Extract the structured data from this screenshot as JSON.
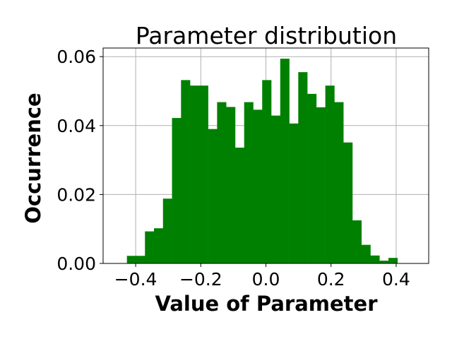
{
  "chart_data": {
    "type": "bar",
    "title": "Parameter distribution",
    "xlabel": "Value of Parameter",
    "ylabel": "Occurrence",
    "xlim": [
      -0.5,
      0.5
    ],
    "ylim": [
      0,
      0.0625
    ],
    "xticks": [
      -0.4,
      -0.2,
      0.0,
      0.2,
      0.4
    ],
    "xtick_labels": [
      "−0.4",
      "−0.2",
      "0.0",
      "0.2",
      "0.4"
    ],
    "yticks": [
      0.0,
      0.02,
      0.04,
      0.06
    ],
    "ytick_labels": [
      "0.00",
      "0.02",
      "0.04",
      "0.06"
    ],
    "grid": true,
    "bar_color": "#008000",
    "bins": [
      {
        "x0": -0.4269,
        "x1": -0.3992,
        "value": 0.0022
      },
      {
        "x0": -0.3992,
        "x1": -0.3715,
        "value": 0.0022
      },
      {
        "x0": -0.3715,
        "x1": -0.3438,
        "value": 0.0093
      },
      {
        "x0": -0.3438,
        "x1": -0.3161,
        "value": 0.0102
      },
      {
        "x0": -0.3161,
        "x1": -0.2884,
        "value": 0.0188
      },
      {
        "x0": -0.2884,
        "x1": -0.2607,
        "value": 0.0422
      },
      {
        "x0": -0.2607,
        "x1": -0.233,
        "value": 0.0532
      },
      {
        "x0": -0.233,
        "x1": -0.2053,
        "value": 0.0516
      },
      {
        "x0": -0.2053,
        "x1": -0.1776,
        "value": 0.0516
      },
      {
        "x0": -0.1776,
        "x1": -0.1499,
        "value": 0.039
      },
      {
        "x0": -0.1499,
        "x1": -0.1222,
        "value": 0.0468
      },
      {
        "x0": -0.1222,
        "x1": -0.0945,
        "value": 0.0454
      },
      {
        "x0": -0.0945,
        "x1": -0.0668,
        "value": 0.0336
      },
      {
        "x0": -0.0668,
        "x1": -0.0391,
        "value": 0.0468
      },
      {
        "x0": -0.0391,
        "x1": -0.0114,
        "value": 0.0446
      },
      {
        "x0": -0.0114,
        "x1": 0.0163,
        "value": 0.0532
      },
      {
        "x0": 0.0163,
        "x1": 0.044,
        "value": 0.0429
      },
      {
        "x0": 0.044,
        "x1": 0.0717,
        "value": 0.0594
      },
      {
        "x0": 0.0717,
        "x1": 0.0994,
        "value": 0.0406
      },
      {
        "x0": 0.0994,
        "x1": 0.1271,
        "value": 0.0555
      },
      {
        "x0": 0.1271,
        "x1": 0.1548,
        "value": 0.0492
      },
      {
        "x0": 0.1548,
        "x1": 0.1825,
        "value": 0.0453
      },
      {
        "x0": 0.1825,
        "x1": 0.2102,
        "value": 0.0516
      },
      {
        "x0": 0.2102,
        "x1": 0.2379,
        "value": 0.0468
      },
      {
        "x0": 0.2379,
        "x1": 0.2656,
        "value": 0.0351
      },
      {
        "x0": 0.2656,
        "x1": 0.2933,
        "value": 0.0125
      },
      {
        "x0": 0.2933,
        "x1": 0.321,
        "value": 0.0054
      },
      {
        "x0": 0.321,
        "x1": 0.3487,
        "value": 0.0023
      },
      {
        "x0": 0.3487,
        "x1": 0.3764,
        "value": 0.0008
      },
      {
        "x0": 0.3764,
        "x1": 0.4041,
        "value": 0.0016
      }
    ]
  }
}
